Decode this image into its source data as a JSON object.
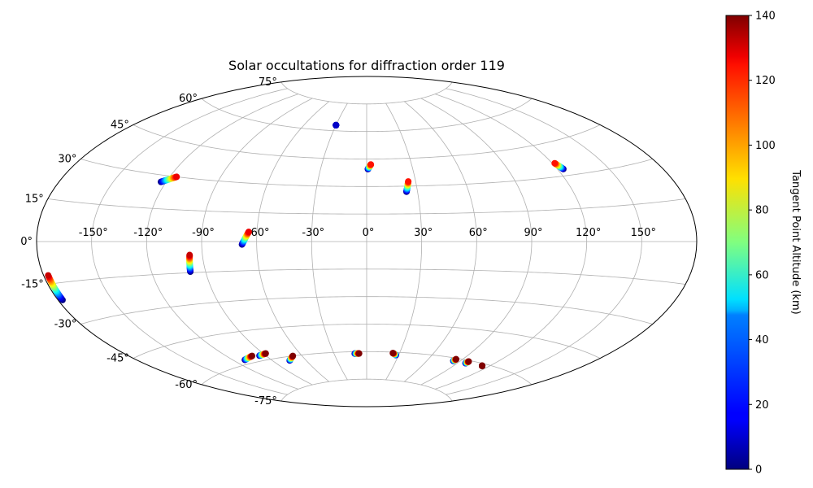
{
  "chart_data": {
    "type": "scatter",
    "projection": "aitoff",
    "title": "Solar occultations for diffraction order 119",
    "xlabel": "",
    "ylabel": "",
    "xlim": [
      -180,
      180
    ],
    "ylim": [
      -90,
      90
    ],
    "grid": true,
    "x_tick_labels": [
      "-150°",
      "-120°",
      "-90°",
      "-60°",
      "-30°",
      "0°",
      "30°",
      "60°",
      "90°",
      "120°",
      "150°"
    ],
    "x_tick_values": [
      -150,
      -120,
      -90,
      -60,
      -30,
      0,
      30,
      60,
      90,
      120,
      150
    ],
    "y_tick_labels": [
      "-75°",
      "-60°",
      "-45°",
      "-30°",
      "-15°",
      "0°",
      "15°",
      "30°",
      "45°",
      "60°",
      "75°"
    ],
    "y_tick_values": [
      -75,
      -60,
      -45,
      -30,
      -15,
      0,
      15,
      30,
      45,
      60,
      75
    ],
    "colorbar": {
      "label": "Tangent Point Altitude (km)",
      "colormap": "jet",
      "range": [
        0,
        140
      ],
      "ticks": [
        0,
        20,
        40,
        60,
        80,
        100,
        120,
        140
      ],
      "tick_labels": [
        "0",
        "20",
        "40",
        "60",
        "80",
        "100",
        "120",
        "140"
      ]
    },
    "tracks": [
      {
        "lon": [
          -30,
          -30
        ],
        "lat": [
          63,
          63
        ],
        "alt": [
          0,
          10
        ]
      },
      {
        "lon": [
          0.8,
          2.8
        ],
        "lat": [
          39.5,
          42
        ],
        "alt": [
          0,
          120
        ]
      },
      {
        "lon": [
          23.5,
          25.5
        ],
        "lat": [
          27,
          32.5
        ],
        "alt": [
          0,
          120
        ]
      },
      {
        "lon": [
          123.5,
          121.5
        ],
        "lat": [
          33,
          36
        ],
        "alt": [
          0,
          120
        ]
      },
      {
        "lon": [
          -123,
          -116
        ],
        "lat": [
          27,
          30
        ],
        "alt": [
          0,
          125
        ]
      },
      {
        "lon": [
          -68,
          -64.5
        ],
        "lat": [
          -1.5,
          5
        ],
        "alt": [
          0,
          125
        ]
      },
      {
        "lon": [
          -98.5,
          -97
        ],
        "lat": [
          -14.5,
          -6.5
        ],
        "alt": [
          0,
          130
        ]
      },
      {
        "lon": [
          -177.5,
          -177.5
        ],
        "lat": [
          -21,
          -12
        ],
        "alt": [
          0,
          130
        ]
      },
      {
        "lon": [
          -111,
          -101
        ],
        "lat": [
          -58,
          -57
        ],
        "alt": [
          0,
          140
        ]
      },
      {
        "lon": [
          -95,
          -88
        ],
        "lat": [
          -57.5,
          -57
        ],
        "alt": [
          0,
          140
        ]
      },
      {
        "lon": [
          -75,
          -68
        ],
        "lat": [
          -62,
          -60
        ],
        "alt": [
          0,
          140
        ]
      },
      {
        "lon": [
          -11,
          -7
        ],
        "lat": [
          -61,
          -61
        ],
        "alt": [
          0,
          140
        ]
      },
      {
        "lon": [
          27.5,
          24
        ],
        "lat": [
          -61.5,
          -60.5
        ],
        "alt": [
          0,
          140
        ]
      },
      {
        "lon": [
          84,
          84.5
        ],
        "lat": [
          -61.5,
          -60.5
        ],
        "alt": [
          0,
          140
        ]
      },
      {
        "lon": [
          97,
          97.5
        ],
        "lat": [
          -61.5,
          -60.5
        ],
        "alt": [
          0,
          140
        ]
      },
      {
        "lon": [
          114,
          114
        ],
        "lat": [
          -61,
          -61
        ],
        "alt": [
          140,
          140
        ]
      }
    ]
  }
}
